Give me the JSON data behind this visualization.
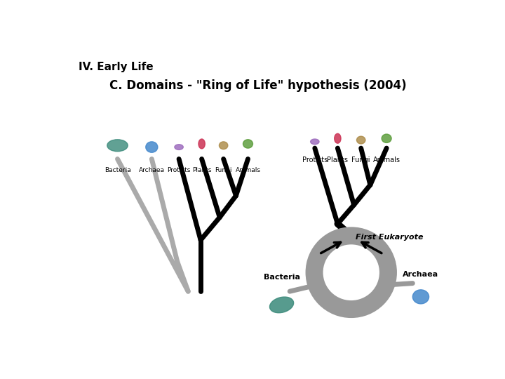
{
  "title1": "IV. Early Life",
  "title2": "C. Domains - \"Ring of Life\" hypothesis (2004)",
  "bg_color": "#ffffff",
  "title1_fontsize": 11,
  "title2_fontsize": 12,
  "left_tree_labels": [
    "Bacteria",
    "Archaea",
    "Protists",
    "Plants",
    "Fungi",
    "Animals"
  ],
  "right_tree_labels_top": [
    "Protists",
    "Plants",
    "Fungi",
    "Animals"
  ],
  "right_label_bacteria": "Bacteria",
  "right_label_archaea": "Archaea",
  "right_label_first_eukaryote": "First Eukaryote",
  "gray_color": "#aaaaaa",
  "black_color": "#000000",
  "lw_gray": 5,
  "lw_black": 5
}
